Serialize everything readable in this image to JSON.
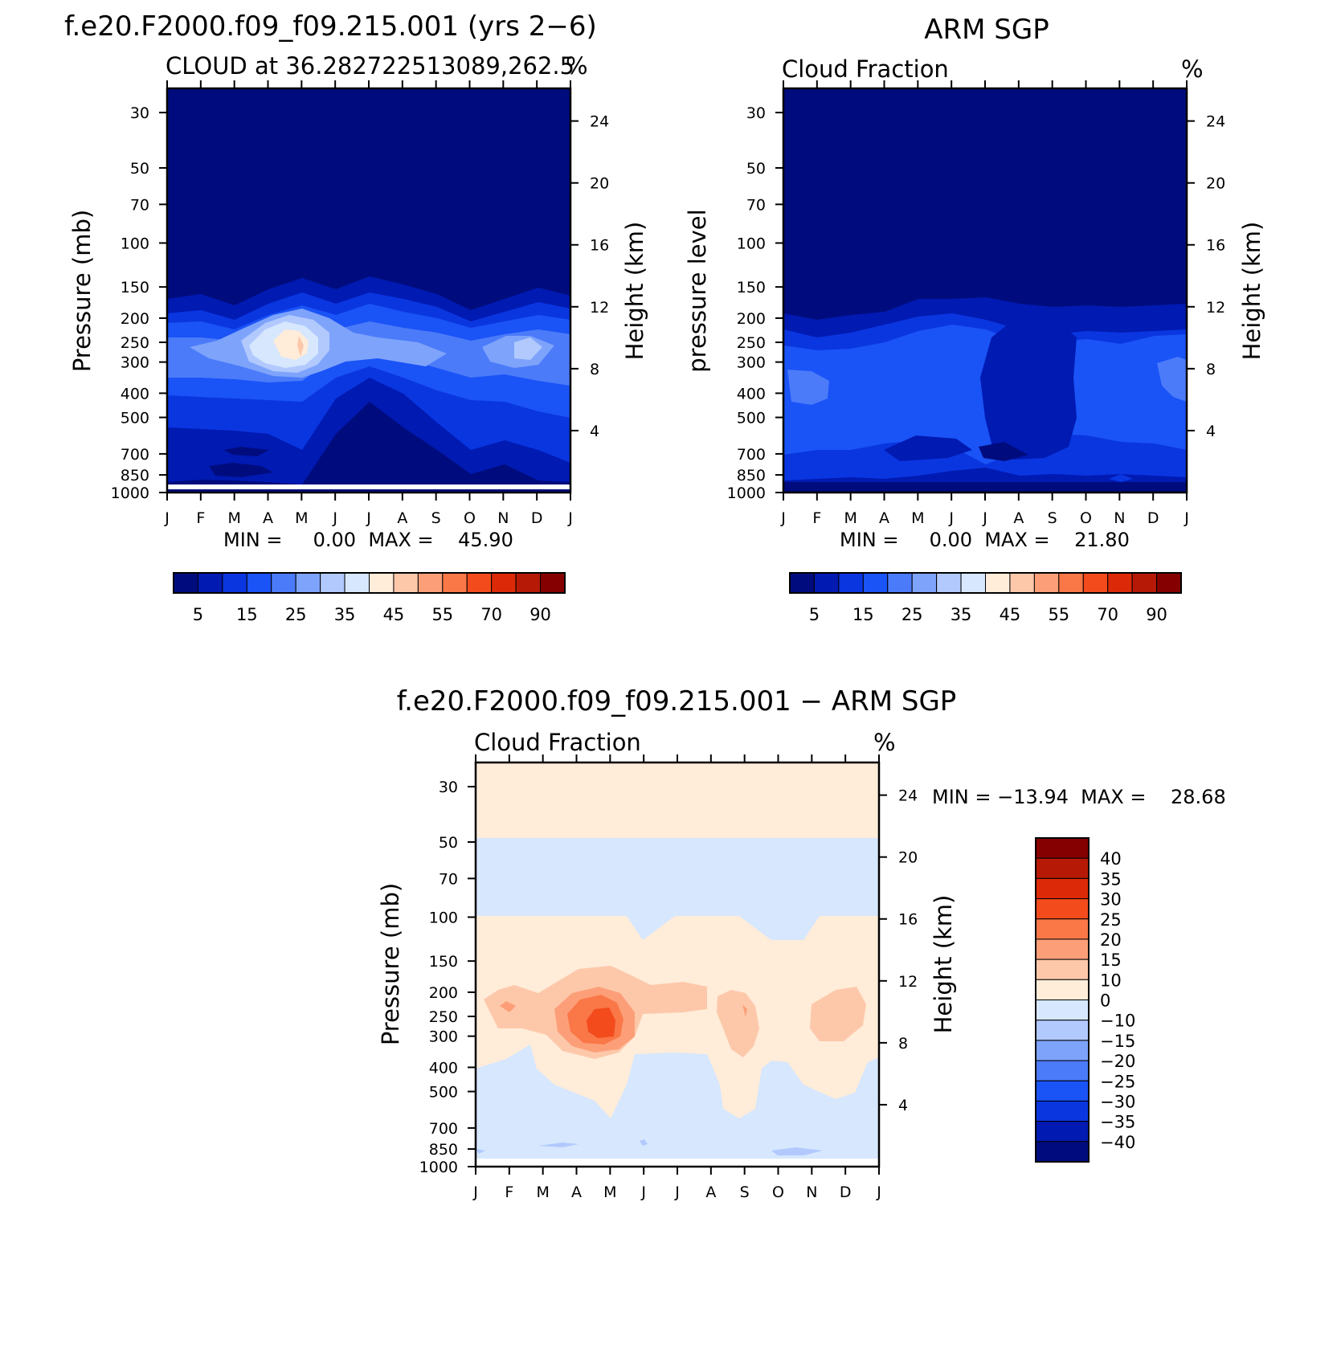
{
  "chart_data": [
    {
      "id": "model",
      "type": "heatmap",
      "title": "f.e20.F2000.f09_f09.215.001 (yrs 2−6)",
      "left_subtitle": "CLOUD at 36.282722513089,262.5",
      "right_subtitle": "%",
      "ylabel_left": "Pressure (mb)",
      "ylabel_right": "Height (km)",
      "x_labels": [
        "J",
        "F",
        "M",
        "A",
        "M",
        "J",
        "J",
        "A",
        "S",
        "O",
        "N",
        "D",
        "J"
      ],
      "pressure_levels": [
        30,
        50,
        70,
        100,
        150,
        200,
        250,
        300,
        400,
        500,
        700,
        850,
        1000
      ],
      "pressure_labels": [
        "30",
        "50",
        "70",
        "100",
        "150",
        "200",
        "250",
        "300",
        "400",
        "500",
        "700",
        "850",
        "1000"
      ],
      "height_levels_km": [
        24,
        20,
        16,
        12,
        8,
        4
      ],
      "height_labels": [
        "24",
        "20",
        "16",
        "12",
        "8",
        "4"
      ],
      "minmax_text": "MIN =     0.00  MAX =    45.90",
      "min": 0.0,
      "max": 45.9,
      "colorbar_labels": [
        "5",
        "15",
        "25",
        "35",
        "45",
        "55",
        "70",
        "90"
      ],
      "colorbar_colors": [
        "#000c7d",
        "#001ab2",
        "#0a36e0",
        "#1a53f6",
        "#4b7bf9",
        "#7ea3fb",
        "#b1c9fd",
        "#d6e7fe",
        "#ffecd9",
        "#fdc8aa",
        "#fc9f78",
        "#fa7747",
        "#f34b1c",
        "#dc2a08",
        "#b61a06",
        "#850000"
      ],
      "month_profiles": [
        {
          "month": "J",
          "top": 180,
          "w1": 215,
          "w2": 260,
          "w3": 300,
          "w4": 380,
          "w5": 430,
          "w6": 430
        },
        {
          "month": "F",
          "top": 175,
          "w1": 210,
          "w2": 250,
          "w3": 280,
          "w4": 330,
          "w5": 370,
          "w6": 370
        },
        {
          "month": "M",
          "top": 170,
          "w1": 205,
          "w2": 235,
          "w3": 260,
          "w4": 280,
          "w5": 300,
          "w6": 320
        },
        {
          "month": "A",
          "top": 165,
          "w1": 195,
          "w2": 220,
          "w3": 235,
          "w4": 245,
          "w5": 255,
          "w6": 265
        },
        {
          "month": "M",
          "top": 150,
          "w1": 185,
          "w2": 205,
          "w3": 215,
          "w4": 230,
          "w5": 240,
          "w6": 280
        },
        {
          "month": "J",
          "top": 160,
          "w1": 200,
          "w2": 225,
          "w3": 240,
          "w4": 255,
          "w5": 270,
          "w6": 270
        },
        {
          "month": "J",
          "top": 150,
          "w1": 205,
          "w2": 240,
          "w3": 270,
          "w4": 290,
          "w5": 290,
          "w6": 290
        },
        {
          "month": "A",
          "top": 160,
          "w1": 210,
          "w2": 250,
          "w3": 285,
          "w4": 300,
          "w5": 300,
          "w6": 300
        },
        {
          "month": "S",
          "top": 175,
          "w1": 215,
          "w2": 255,
          "w3": 290,
          "w4": 300,
          "w5": 300,
          "w6": 300
        },
        {
          "month": "O",
          "top": 190,
          "w1": 225,
          "w2": 265,
          "w3": 280,
          "w4": 290,
          "w5": 290,
          "w6": 290
        },
        {
          "month": "N",
          "top": 180,
          "w1": 205,
          "w2": 235,
          "w3": 260,
          "w4": 275,
          "w5": 285,
          "w6": 285
        },
        {
          "month": "D",
          "top": 170,
          "w1": 195,
          "w2": 225,
          "w3": 240,
          "w4": 255,
          "w5": 265,
          "w6": 265
        },
        {
          "month": "J",
          "top": 180,
          "w1": 215,
          "w2": 260,
          "w3": 300,
          "w4": 380,
          "w5": 430,
          "w6": 430
        }
      ]
    },
    {
      "id": "obs",
      "type": "heatmap",
      "title": "ARM SGP",
      "left_subtitle": "Cloud Fraction",
      "right_subtitle": "%",
      "ylabel_left": "pressure level",
      "ylabel_right": "Height (km)",
      "x_labels": [
        "J",
        "F",
        "M",
        "A",
        "M",
        "J",
        "J",
        "A",
        "S",
        "O",
        "N",
        "D",
        "J"
      ],
      "pressure_levels": [
        30,
        50,
        70,
        100,
        150,
        200,
        250,
        300,
        400,
        500,
        700,
        850,
        1000
      ],
      "pressure_labels": [
        "30",
        "50",
        "70",
        "100",
        "150",
        "200",
        "250",
        "300",
        "400",
        "500",
        "700",
        "850",
        "1000"
      ],
      "height_levels_km": [
        24,
        20,
        16,
        12,
        8,
        4
      ],
      "height_labels": [
        "24",
        "20",
        "16",
        "12",
        "8",
        "4"
      ],
      "minmax_text": "MIN =     0.00  MAX =    21.80",
      "min": 0.0,
      "max": 21.8,
      "colorbar_labels": [
        "5",
        "15",
        "25",
        "35",
        "45",
        "55",
        "70",
        "90"
      ],
      "colorbar_colors": [
        "#000c7d",
        "#001ab2",
        "#0a36e0",
        "#1a53f6",
        "#4b7bf9",
        "#7ea3fb",
        "#b1c9fd",
        "#d6e7fe",
        "#ffecd9",
        "#fdc8aa",
        "#fc9f78",
        "#fa7747",
        "#f34b1c",
        "#dc2a08",
        "#b61a06",
        "#850000"
      ]
    },
    {
      "id": "diff",
      "type": "heatmap",
      "title": "f.e20.F2000.f09_f09.215.001 − ARM SGP",
      "left_subtitle": "Cloud Fraction",
      "right_subtitle": "%",
      "ylabel_left": "Pressure (mb)",
      "ylabel_right": "Height (km)",
      "x_labels": [
        "J",
        "F",
        "M",
        "A",
        "M",
        "J",
        "J",
        "A",
        "S",
        "O",
        "N",
        "D",
        "J"
      ],
      "pressure_levels": [
        30,
        50,
        70,
        100,
        150,
        200,
        250,
        300,
        400,
        500,
        700,
        850,
        1000
      ],
      "pressure_labels": [
        "30",
        "50",
        "70",
        "100",
        "150",
        "200",
        "250",
        "300",
        "400",
        "500",
        "700",
        "850",
        "1000"
      ],
      "height_levels_km": [
        24,
        20,
        16,
        12,
        8,
        4
      ],
      "height_labels": [
        "24",
        "20",
        "16",
        "12",
        "8",
        "4"
      ],
      "minmax_text": "MIN = −13.94  MAX =    28.68",
      "min": -13.94,
      "max": 28.68,
      "colorbar_labels": [
        "40",
        "35",
        "30",
        "25",
        "20",
        "15",
        "10",
        "0",
        "−10",
        "−15",
        "−20",
        "−25",
        "−30",
        "−35",
        "−40"
      ],
      "colorbar_colors": [
        "#850000",
        "#b61a06",
        "#dc2a08",
        "#f34b1c",
        "#fa7747",
        "#fc9f78",
        "#fdc8aa",
        "#ffecd9",
        "#d6e7fe",
        "#b1c9fd",
        "#7ea3fb",
        "#4b7bf9",
        "#1a53f6",
        "#0a36e0",
        "#001ab2",
        "#000c7d"
      ]
    }
  ]
}
